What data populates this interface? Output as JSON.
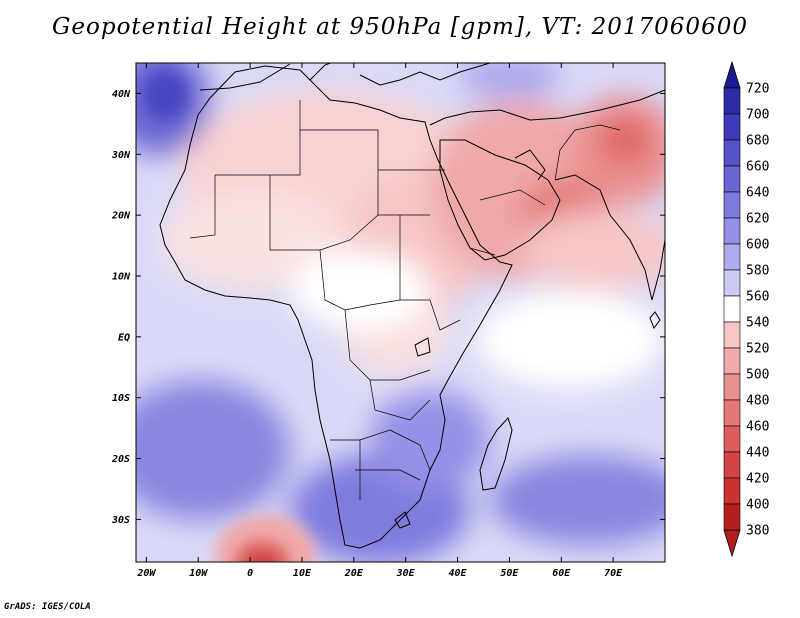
{
  "title": "Geopotential Height at 950hPa [gpm], VT: 2017060600",
  "credit": "GrADS: IGES/COLA",
  "lat_labels": [
    "40N",
    "30N",
    "20N",
    "10N",
    "EQ",
    "10S",
    "20S",
    "30S"
  ],
  "lon_labels": [
    "20W",
    "10W",
    "0",
    "10E",
    "20E",
    "30E",
    "40E",
    "50E",
    "60E",
    "70E"
  ],
  "colorbar": {
    "labels": [
      "720",
      "700",
      "680",
      "660",
      "640",
      "620",
      "600",
      "580",
      "560",
      "540",
      "520",
      "500",
      "480",
      "460",
      "440",
      "420",
      "400",
      "380"
    ],
    "colors": [
      "#1c1a91",
      "#2d2aa6",
      "#3f3bb8",
      "#5552c8",
      "#6a66d4",
      "#7f7bde",
      "#9591e6",
      "#aeabee",
      "#cbcaf5",
      "#ffffff",
      "#f6c6c6",
      "#f0a8a8",
      "#ea8f8f",
      "#e47676",
      "#dd5c5c",
      "#d44444",
      "#c93030",
      "#b31f1f"
    ]
  },
  "map": {
    "lon_range": [
      -22,
      80
    ],
    "lat_range": [
      -37,
      45
    ],
    "color_hi": "#1c1a91",
    "color_lo": "#b31f1f"
  }
}
